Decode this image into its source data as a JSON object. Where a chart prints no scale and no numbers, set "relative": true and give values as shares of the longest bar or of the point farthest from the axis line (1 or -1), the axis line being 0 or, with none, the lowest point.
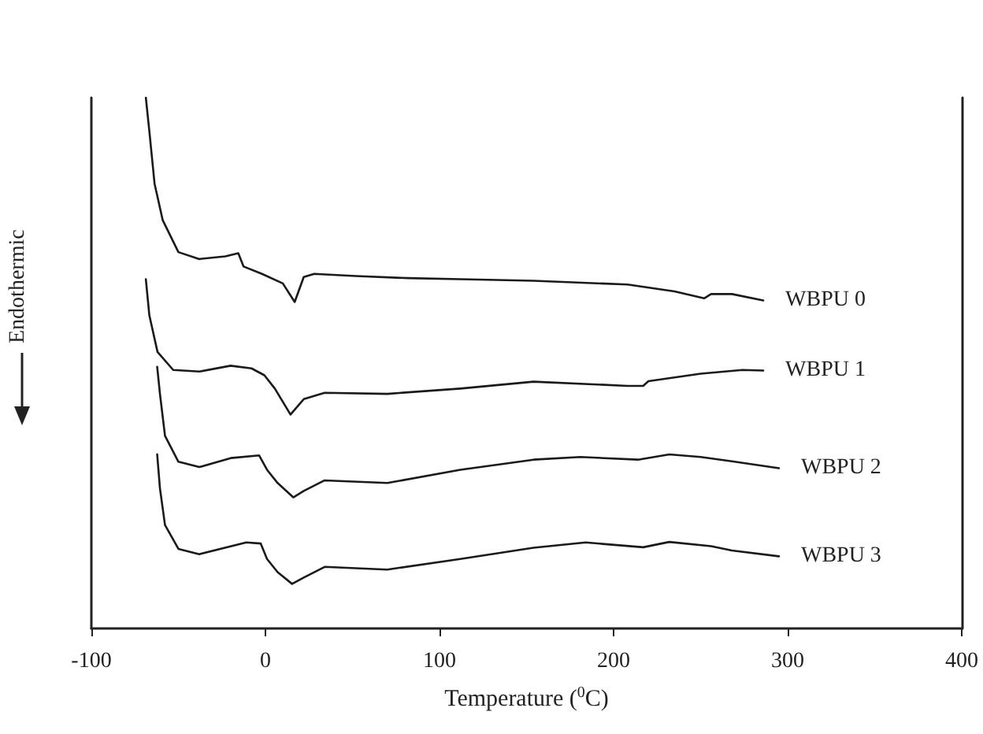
{
  "chart_data": {
    "type": "line",
    "xlabel": "Temperature ($^{0}$C)",
    "ylabel": "Endothermic",
    "relative": true,
    "xlim": [
      -100,
      400
    ],
    "xticks": [
      -100,
      0,
      100,
      200,
      300,
      400
    ],
    "grid": false,
    "legend": false,
    "marker": "none",
    "line_style": "solid",
    "series": [
      {
        "name": "WBPU 0",
        "color": "#1a1a1a",
        "x": [
          -68.7,
          -66.7,
          -63.7,
          -59,
          -50,
          -38,
          -23,
          -15.6,
          -12.6,
          -2,
          10,
          16.8,
          22,
          28,
          52,
          82,
          112,
          154,
          208,
          235,
          252,
          256,
          268,
          286
        ],
        "values": [
          1,
          0.937,
          0.838,
          0.769,
          0.709,
          0.696,
          0.701,
          0.707,
          0.682,
          0.668,
          0.65,
          0.615,
          0.662,
          0.668,
          0.664,
          0.66,
          0.658,
          0.655,
          0.648,
          0.635,
          0.622,
          0.63,
          0.63,
          0.618
        ]
      },
      {
        "name": "WBPU 1",
        "color": "#1a1a1a",
        "x": [
          -68.7,
          -66.7,
          -62,
          -53,
          -38,
          -20,
          -8,
          -0.6,
          5.4,
          14.4,
          22,
          34,
          70,
          112,
          154,
          208,
          217,
          220,
          250,
          274,
          286
        ],
        "values": [
          0.658,
          0.59,
          0.521,
          0.487,
          0.484,
          0.495,
          0.49,
          0.477,
          0.452,
          0.403,
          0.432,
          0.444,
          0.442,
          0.452,
          0.465,
          0.457,
          0.457,
          0.466,
          0.48,
          0.487,
          0.486
        ]
      },
      {
        "name": "WBPU 2",
        "color": "#1a1a1a",
        "x": [
          -62.2,
          -60.6,
          -57.7,
          -50,
          -38,
          -20,
          -3.6,
          0.9,
          7,
          16,
          22,
          34,
          70,
          112,
          154,
          181,
          214,
          232,
          250,
          268,
          295
        ],
        "values": [
          0.493,
          0.442,
          0.363,
          0.314,
          0.304,
          0.321,
          0.326,
          0.299,
          0.274,
          0.247,
          0.259,
          0.279,
          0.274,
          0.299,
          0.318,
          0.323,
          0.318,
          0.328,
          0.323,
          0.315,
          0.302
        ]
      },
      {
        "name": "WBPU 3",
        "color": "#1a1a1a",
        "x": [
          -62.2,
          -60.6,
          -57.7,
          -50,
          -38,
          -11,
          -2.7,
          0.9,
          7,
          15.3,
          22,
          34,
          70,
          112,
          154,
          184,
          217,
          232,
          256,
          268,
          295
        ],
        "values": [
          0.328,
          0.264,
          0.195,
          0.15,
          0.14,
          0.162,
          0.16,
          0.131,
          0.106,
          0.084,
          0.096,
          0.116,
          0.111,
          0.131,
          0.152,
          0.162,
          0.153,
          0.163,
          0.155,
          0.147,
          0.136
        ]
      }
    ]
  }
}
